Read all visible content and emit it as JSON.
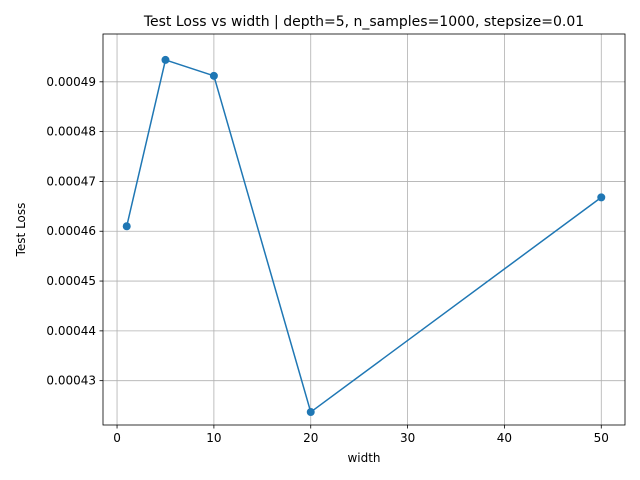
{
  "chart_data": {
    "type": "line",
    "title": "Test Loss vs width | depth=5, n_samples=1000, stepsize=0.01",
    "xlabel": "width",
    "ylabel": "Test Loss",
    "xlim": [
      -1.45,
      52.45
    ],
    "ylim": [
      0.0004211,
      0.0004996
    ],
    "xticks": [
      0,
      10,
      20,
      30,
      40,
      50
    ],
    "yticks": [
      0.00043,
      0.00044,
      0.00045,
      0.00046,
      0.00047,
      0.00048,
      0.00049
    ],
    "xtick_labels": [
      "0",
      "10",
      "20",
      "30",
      "40",
      "50"
    ],
    "ytick_labels": [
      "0.00043",
      "0.00044",
      "0.00045",
      "0.00046",
      "0.00047",
      "0.00048",
      "0.00049"
    ],
    "grid": true,
    "marker": "circle",
    "series": [
      {
        "x": [
          1,
          5,
          10,
          20,
          50
        ],
        "values": [
          0.000461,
          0.0004944,
          0.0004912,
          0.0004237,
          0.0004668
        ]
      }
    ],
    "colors": {
      "line": "#1f77b4",
      "grid": "#b0b0b0",
      "axes": "#000000"
    }
  }
}
